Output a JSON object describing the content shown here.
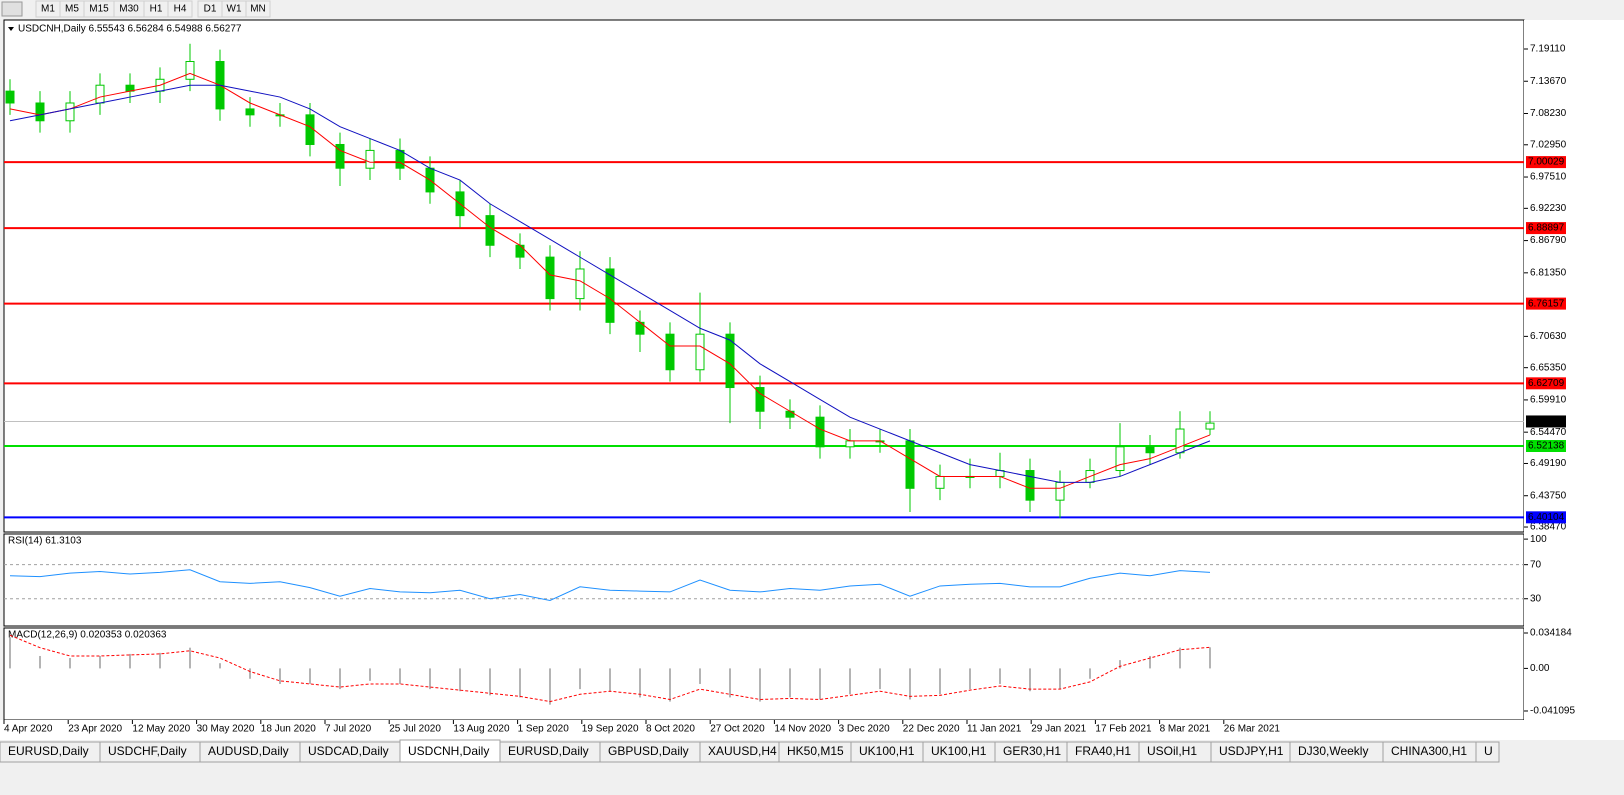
{
  "toolbar": {
    "buttons": [
      "M1",
      "M5",
      "M15",
      "M30",
      "H1",
      "H4",
      "D1",
      "W1",
      "MN"
    ]
  },
  "chart_data": [
    {
      "type": "candlestick",
      "title": "USDCNH,Daily  6.55543 6.56284 6.54988 6.56277",
      "open": [
        7.12,
        7.1,
        7.07,
        7.1,
        7.13,
        7.12,
        7.14,
        7.17,
        7.09,
        7.08,
        7.08,
        7.03,
        6.99,
        7.02,
        6.99,
        6.95,
        6.91,
        6.86,
        6.84,
        6.77,
        6.82,
        6.73,
        6.71,
        6.65,
        6.71,
        6.62,
        6.58,
        6.57,
        6.52,
        6.53,
        6.53,
        6.45,
        6.47,
        6.47,
        6.48,
        6.43,
        6.46,
        6.48,
        6.52,
        6.51,
        6.55
      ],
      "high": [
        7.14,
        7.12,
        7.12,
        7.15,
        7.15,
        7.16,
        7.2,
        7.19,
        7.11,
        7.1,
        7.1,
        7.05,
        7.04,
        7.04,
        7.01,
        6.97,
        6.93,
        6.88,
        6.86,
        6.85,
        6.84,
        6.75,
        6.73,
        6.78,
        6.73,
        6.64,
        6.6,
        6.59,
        6.55,
        6.55,
        6.55,
        6.49,
        6.5,
        6.51,
        6.5,
        6.48,
        6.5,
        6.56,
        6.54,
        6.58,
        6.58
      ],
      "low": [
        7.08,
        7.05,
        7.05,
        7.08,
        7.1,
        7.1,
        7.12,
        7.07,
        7.06,
        7.06,
        7.01,
        6.96,
        6.97,
        6.97,
        6.93,
        6.89,
        6.84,
        6.82,
        6.75,
        6.75,
        6.71,
        6.68,
        6.63,
        6.63,
        6.56,
        6.55,
        6.55,
        6.5,
        6.5,
        6.51,
        6.41,
        6.43,
        6.45,
        6.45,
        6.41,
        6.4,
        6.45,
        6.47,
        6.49,
        6.5,
        6.54
      ],
      "close": [
        7.1,
        7.07,
        7.1,
        7.13,
        7.12,
        7.14,
        7.17,
        7.09,
        7.08,
        7.08,
        7.03,
        6.99,
        7.02,
        6.99,
        6.95,
        6.91,
        6.86,
        6.84,
        6.77,
        6.82,
        6.73,
        6.71,
        6.65,
        6.71,
        6.62,
        6.58,
        6.57,
        6.52,
        6.53,
        6.53,
        6.45,
        6.47,
        6.47,
        6.48,
        6.43,
        6.46,
        6.48,
        6.52,
        6.51,
        6.55,
        6.56
      ],
      "up_color": "#00c800",
      "down_color": "#00c800",
      "lines": [
        {
          "color": "#ff0000",
          "values": [
            7.09,
            7.08,
            7.09,
            7.11,
            7.12,
            7.13,
            7.15,
            7.13,
            7.1,
            7.08,
            7.06,
            7.02,
            7.0,
            7.0,
            6.97,
            6.93,
            6.89,
            6.86,
            6.81,
            6.8,
            6.77,
            6.73,
            6.69,
            6.69,
            6.66,
            6.61,
            6.58,
            6.55,
            6.53,
            6.53,
            6.5,
            6.47,
            6.47,
            6.47,
            6.45,
            6.45,
            6.47,
            6.49,
            6.5,
            6.52,
            6.54
          ]
        },
        {
          "color": "#1010c0",
          "values": [
            7.07,
            7.08,
            7.09,
            7.1,
            7.11,
            7.12,
            7.13,
            7.13,
            7.12,
            7.11,
            7.09,
            7.06,
            7.04,
            7.02,
            6.99,
            6.97,
            6.93,
            6.9,
            6.87,
            6.84,
            6.81,
            6.78,
            6.75,
            6.72,
            6.7,
            6.66,
            6.63,
            6.6,
            6.57,
            6.55,
            6.53,
            6.51,
            6.49,
            6.48,
            6.47,
            6.46,
            6.46,
            6.47,
            6.49,
            6.51,
            6.53
          ]
        }
      ],
      "levels": [
        {
          "value": 7.00029,
          "color": "#ff0000"
        },
        {
          "value": 6.88897,
          "color": "#ff0000"
        },
        {
          "value": 6.76157,
          "color": "#ff0000"
        },
        {
          "value": 6.62709,
          "color": "#ff0000"
        },
        {
          "value": 6.52138,
          "color": "#00e000"
        },
        {
          "value": 6.40104,
          "color": "#0000ff"
        }
      ],
      "last_price": 6.56277,
      "ylim": [
        6.3763,
        7.24
      ],
      "yticks": [
        {
          "value": 7.1911,
          "label": "7.19110"
        },
        {
          "value": 7.1367,
          "label": "7.13670"
        },
        {
          "value": 7.0823,
          "label": "7.08230"
        },
        {
          "value": 7.0295,
          "label": "7.02950"
        },
        {
          "value": 6.9751,
          "label": "6.97510"
        },
        {
          "value": 6.9223,
          "label": "6.92230"
        },
        {
          "value": 6.8679,
          "label": "6.86790"
        },
        {
          "value": 6.8135,
          "label": "6.81350"
        },
        {
          "value": 6.7063,
          "label": "6.70630"
        },
        {
          "value": 6.6535,
          "label": "6.65350"
        },
        {
          "value": 6.5991,
          "label": "6.59910"
        },
        {
          "value": 6.5447,
          "label": "6.54470"
        },
        {
          "value": 6.4919,
          "label": "6.49190"
        },
        {
          "value": 6.4375,
          "label": "6.43750"
        },
        {
          "value": 6.3847,
          "label": "6.38470"
        }
      ]
    },
    {
      "type": "line",
      "title": "RSI(14) 61.3103",
      "color": "#1e90ff",
      "values": [
        57,
        56,
        60,
        62,
        59,
        61,
        64,
        50,
        48,
        50,
        43,
        33,
        42,
        38,
        37,
        40,
        30,
        35,
        28,
        44,
        40,
        39,
        38,
        52,
        40,
        38,
        42,
        40,
        45,
        47,
        33,
        45,
        47,
        48,
        44,
        44,
        54,
        60,
        57,
        63,
        61
      ],
      "ylim": [
        -2,
        106
      ],
      "yticks": [
        100,
        70,
        30
      ],
      "levels": [
        70,
        30
      ]
    },
    {
      "type": "macd",
      "title": "MACD(12,26,9) 0.020353 0.020363",
      "hist_color": "#b4b4b4",
      "signal_color": "#ff0000",
      "histogram": [
        0.03,
        0.012,
        0.01,
        0.012,
        0.014,
        0.015,
        0.02,
        0.005,
        -0.01,
        -0.015,
        -0.015,
        -0.02,
        -0.012,
        -0.015,
        -0.02,
        -0.022,
        -0.026,
        -0.028,
        -0.035,
        -0.02,
        -0.022,
        -0.028,
        -0.032,
        -0.015,
        -0.028,
        -0.032,
        -0.028,
        -0.03,
        -0.025,
        -0.02,
        -0.03,
        -0.025,
        -0.02,
        -0.015,
        -0.022,
        -0.02,
        -0.01,
        0.008,
        0.012,
        0.02,
        0.020353
      ],
      "signal": [
        0.032,
        0.02,
        0.012,
        0.012,
        0.013,
        0.014,
        0.017,
        0.01,
        -0.003,
        -0.012,
        -0.015,
        -0.018,
        -0.015,
        -0.015,
        -0.018,
        -0.021,
        -0.024,
        -0.027,
        -0.032,
        -0.025,
        -0.022,
        -0.025,
        -0.03,
        -0.02,
        -0.025,
        -0.03,
        -0.029,
        -0.03,
        -0.026,
        -0.022,
        -0.027,
        -0.026,
        -0.021,
        -0.017,
        -0.02,
        -0.02,
        -0.013,
        0.002,
        0.01,
        0.018,
        0.020363
      ],
      "ylim": [
        -0.0498,
        0.039
      ],
      "yticks": [
        0.034184,
        {
          "value": 0,
          "label": "0.00"
        },
        -0.041095
      ],
      "xticks": [
        "4 Apr 2020",
        "23 Apr 2020",
        "12 May 2020",
        "30 May 2020",
        "18 Jun 2020",
        "7 Jul 2020",
        "25 Jul 2020",
        "13 Aug 2020",
        "1 Sep 2020",
        "19 Sep 2020",
        "8 Oct 2020",
        "27 Oct 2020",
        "14 Nov 2020",
        "3 Dec 2020",
        "22 Dec 2020",
        "11 Jan 2021",
        "29 Jan 2021",
        "17 Feb 2021",
        "8 Mar 2021",
        "26 Mar 2021"
      ]
    }
  ],
  "tabs": {
    "items": [
      "EURUSD,Daily",
      "USDCHF,Daily",
      "AUDUSD,Daily",
      "USDCAD,Daily",
      "USDCNH,Daily",
      "EURUSD,Daily",
      "GBPUSD,Daily",
      "XAUUSD,H4",
      "HK50,M15",
      "UK100,H1",
      "UK100,H1",
      "GER30,H1",
      "FRA40,H1",
      "USOil,H1",
      "USDJPY,H1",
      "DJ30,Weekly",
      "CHINA300,H1",
      "U"
    ],
    "active": 4
  }
}
